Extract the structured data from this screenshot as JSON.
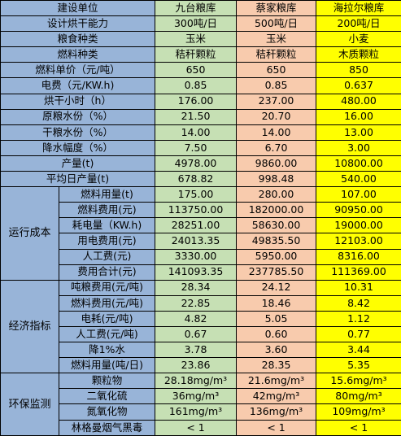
{
  "header": {
    "label": "建设单位",
    "sites": [
      "九台粮库",
      "蔡家粮库",
      "海拉尔粮库"
    ]
  },
  "rows": [
    {
      "label": "设计烘干能力",
      "values": [
        "300吨/日",
        "500吨/日",
        "200吨/日"
      ]
    },
    {
      "label": "粮食种类",
      "values": [
        "玉米",
        "玉米",
        "小麦"
      ]
    },
    {
      "label": "燃料种类",
      "values": [
        "秸秆颗粒",
        "秸秆颗粒",
        "木质颗粒"
      ]
    },
    {
      "label": "燃料单价（元/吨）",
      "values": [
        "650",
        "650",
        "850"
      ]
    },
    {
      "label": "电费（元/KW.h)",
      "values": [
        "0.85",
        "0.85",
        "0.637"
      ]
    },
    {
      "label": "烘干小时（h）",
      "values": [
        "176.00",
        "237.00",
        "480.00"
      ]
    },
    {
      "label": "原粮水份（%）",
      "values": [
        "21.50",
        "20.70",
        "16.00"
      ]
    },
    {
      "label": "干粮水份（%）",
      "values": [
        "14.00",
        "14.00",
        "13.00"
      ]
    },
    {
      "label": "降水幅度（%）",
      "values": [
        "7.50",
        "6.70",
        "3.00"
      ]
    },
    {
      "label": "产量(t)",
      "values": [
        "4978.00",
        "9860.00",
        "10800.00"
      ]
    },
    {
      "label": "平均日产量(t)",
      "values": [
        "678.82",
        "998.48",
        "540.00"
      ]
    }
  ],
  "groups": [
    {
      "label": "运行成本",
      "rows": [
        {
          "label": "燃料用量(t)",
          "values": [
            "175.00",
            "280.00",
            "107.00"
          ]
        },
        {
          "label": "燃料费用(元)",
          "values": [
            "113750.00",
            "182000.00",
            "90950.00"
          ]
        },
        {
          "label": "耗电量（KW.h)",
          "values": [
            "28251.00",
            "58630.00",
            "19000.00"
          ]
        },
        {
          "label": "用电费用(元)",
          "values": [
            "24013.35",
            "49835.50",
            "12103.00"
          ]
        },
        {
          "label": "人工费(元)",
          "values": [
            "3330.00",
            "5950.00",
            "8316.00"
          ]
        },
        {
          "label": "费用合计(元)",
          "values": [
            "141093.35",
            "237785.50",
            "111369.00"
          ]
        }
      ]
    },
    {
      "label": "经济指标",
      "rows": [
        {
          "label": "吨粮费用(元/吨)",
          "values": [
            "28.34",
            "24.12",
            "10.31"
          ]
        },
        {
          "label": "燃料费用(元/吨)",
          "values": [
            "22.85",
            "18.46",
            "8.42"
          ]
        },
        {
          "label": "电耗(元/吨)",
          "values": [
            "4.82",
            "5.05",
            "1.12"
          ]
        },
        {
          "label": "人工费(元/吨)",
          "values": [
            "0.67",
            "0.60",
            "0.77"
          ]
        },
        {
          "label": "降1%水",
          "values": [
            "3.78",
            "3.60",
            "3.44"
          ]
        },
        {
          "label": "燃料用量(吨/日)",
          "values": [
            "23.86",
            "28.35",
            "5.35"
          ]
        }
      ]
    },
    {
      "label": "环保监测",
      "rows": [
        {
          "label": "颗粒物",
          "values": [
            "28.18mg/m³",
            "21.6mg/m³",
            "15.6mg/m³"
          ]
        },
        {
          "label": "二氧化硫",
          "values": [
            "36mg/m³",
            "42mg/m³",
            "80mg/m³"
          ]
        },
        {
          "label": "氮氧化物",
          "values": [
            "161mg/m³",
            "136mg/m³",
            "109mg/m³"
          ]
        },
        {
          "label": "林格曼烟气黑毒",
          "values": [
            "< 1",
            "< 1",
            "< 1"
          ]
        }
      ]
    }
  ]
}
